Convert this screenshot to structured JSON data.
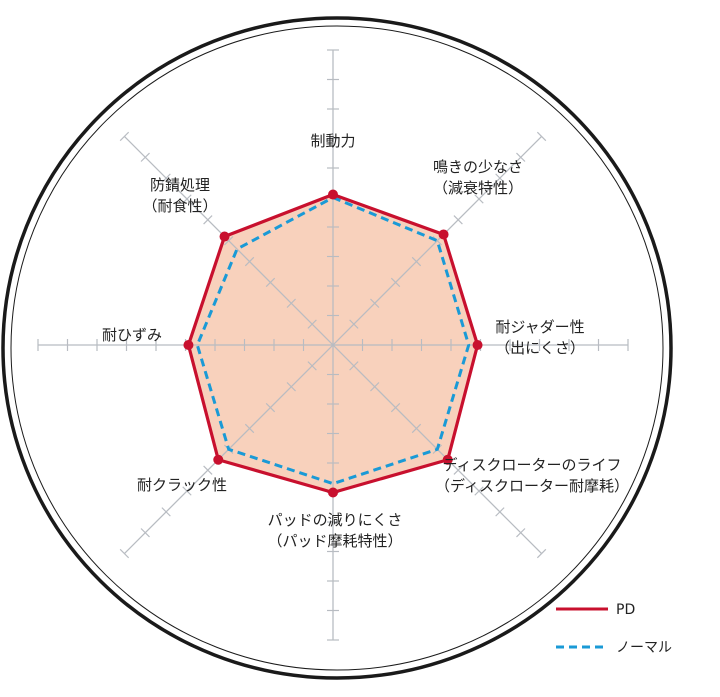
{
  "chart_data": {
    "type": "radar",
    "title": "",
    "axes": [
      {
        "label_lines": [
          "制動力"
        ]
      },
      {
        "label_lines": [
          "鳴きの少なさ",
          "（減衰特性）"
        ]
      },
      {
        "label_lines": [
          "耐ジャダー性",
          "（出にくさ）"
        ]
      },
      {
        "label_lines": [
          "ディスクローターのライフ",
          "（ディスクローター耐摩耗）"
        ]
      },
      {
        "label_lines": [
          "パッドの減りにくさ",
          "（パッド摩耗特性）"
        ]
      },
      {
        "label_lines": [
          "耐クラック性"
        ]
      },
      {
        "label_lines": [
          "耐ひずみ"
        ]
      },
      {
        "label_lines": [
          "防錆処理",
          "（耐食性）"
        ]
      }
    ],
    "scale": {
      "min": 0,
      "max": 10,
      "ticks": 10
    },
    "grid": "radial-ticks",
    "legend_position": "bottom-right",
    "series": [
      {
        "name": "PD",
        "color": "#c8102e",
        "line_style": "solid",
        "fill": "#f7c9b0",
        "values": [
          5.1,
          5.3,
          4.9,
          5.5,
          5.0,
          5.5,
          4.9,
          5.2
        ]
      },
      {
        "name": "ノーマル",
        "color": "#1a9ad6",
        "line_style": "dashed",
        "fill": "none",
        "values": [
          5.0,
          5.0,
          4.6,
          5.0,
          4.7,
          5.0,
          4.6,
          4.6
        ]
      }
    ]
  }
}
